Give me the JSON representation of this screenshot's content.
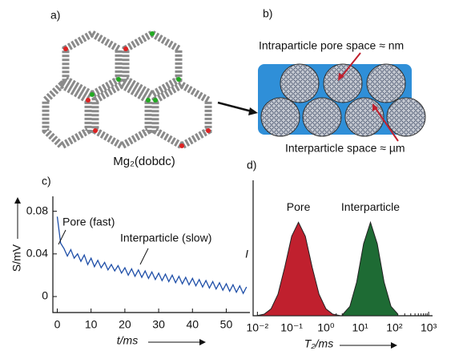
{
  "panels": {
    "a": {
      "label": "a)",
      "caption": "Mg₂(dobdc)"
    },
    "b": {
      "label": "b)",
      "intraparticle": "Intraparticle pore space ≈ nm",
      "interparticle": "Interparticle space ≈ µm"
    }
  },
  "chart_data": [
    {
      "type": "line",
      "panel_label": "c)",
      "x_label": "t/ms",
      "y_label": "S/mV",
      "annotations": [
        "Pore (fast)",
        "Interparticle (slow)"
      ],
      "x": [
        0,
        1,
        2,
        3,
        4,
        5,
        6,
        7,
        8,
        9,
        10,
        11,
        12,
        13,
        14,
        15,
        16,
        17,
        18,
        19,
        20,
        21,
        22,
        23,
        24,
        25,
        26,
        27,
        28,
        29,
        30,
        31,
        32,
        33,
        34,
        35,
        36,
        37,
        38,
        39,
        40,
        41,
        42,
        43,
        44,
        45,
        46,
        47,
        48,
        49,
        50,
        51,
        52,
        53,
        54,
        55,
        56
      ],
      "series": [
        {
          "name": "S",
          "color": "#1f4fa8",
          "values": [
            0.075,
            0.05,
            0.045,
            0.038,
            0.044,
            0.036,
            0.04,
            0.033,
            0.039,
            0.03,
            0.036,
            0.028,
            0.034,
            0.027,
            0.032,
            0.025,
            0.03,
            0.024,
            0.029,
            0.022,
            0.027,
            0.02,
            0.026,
            0.019,
            0.025,
            0.018,
            0.024,
            0.017,
            0.023,
            0.016,
            0.022,
            0.015,
            0.021,
            0.014,
            0.02,
            0.013,
            0.019,
            0.012,
            0.018,
            0.011,
            0.017,
            0.01,
            0.016,
            0.009,
            0.015,
            0.008,
            0.014,
            0.007,
            0.013,
            0.006,
            0.012,
            0.005,
            0.011,
            0.004,
            0.01,
            0.003,
            0.009
          ]
        }
      ],
      "xlim": [
        -1.3,
        57
      ],
      "xticks": [
        0,
        10,
        20,
        30,
        40,
        50
      ],
      "ylim": [
        -0.015,
        0.094
      ],
      "yticks": [
        0,
        0.04,
        0.08
      ]
    },
    {
      "type": "area",
      "panel_label": "d)",
      "x_label": "T₂/ms",
      "y_label": "I",
      "log_x": true,
      "series": [
        {
          "name": "Pore",
          "color": "#c0202e",
          "x": [
            0.01,
            0.0158,
            0.0251,
            0.0398,
            0.0631,
            0.1,
            0.158,
            0.251,
            0.398,
            0.631,
            1,
            1.58,
            2.51
          ],
          "values": [
            0.003,
            0.017,
            0.074,
            0.23,
            0.52,
            0.85,
            1,
            0.85,
            0.52,
            0.23,
            0.074,
            0.017,
            0.003
          ]
        },
        {
          "name": "Interparticle",
          "color": "#1e6b34",
          "x": [
            3.16,
            5.01,
            7.94,
            12.6,
            20,
            31.6,
            50.1,
            79.4,
            126
          ],
          "values": [
            0.017,
            0.1,
            0.36,
            0.77,
            1,
            0.77,
            0.36,
            0.1,
            0.017
          ]
        }
      ],
      "xlim": [
        0.0075,
        1300
      ],
      "xticks": [
        {
          "value": 0.01,
          "label": "10⁻²"
        },
        {
          "value": 0.1,
          "label": "10⁻¹"
        },
        {
          "value": 1,
          "label": "10⁰"
        },
        {
          "value": 10,
          "label": "10¹"
        },
        {
          "value": 100,
          "label": "10²"
        },
        {
          "value": 1000,
          "label": "10³"
        }
      ],
      "ylim": [
        0,
        1.45
      ]
    }
  ]
}
